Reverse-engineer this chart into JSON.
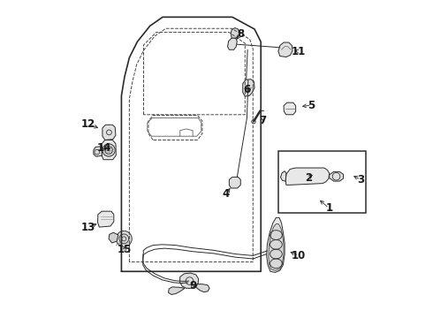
{
  "bg_color": "#ffffff",
  "line_color": "#2a2a2a",
  "label_color": "#1a1a1a",
  "lw_main": 1.2,
  "lw_thin": 0.7,
  "lw_dash": 0.7,
  "label_fontsize": 8.5,
  "figsize": [
    4.9,
    3.6
  ],
  "dpi": 100,
  "label_positions": {
    "1": [
      0.855,
      0.345,
      0.82,
      0.375
    ],
    "2": [
      0.79,
      0.44,
      0.81,
      0.455
    ],
    "3": [
      0.955,
      0.435,
      0.925,
      0.45
    ],
    "4": [
      0.53,
      0.39,
      0.548,
      0.415
    ],
    "5": [
      0.8,
      0.67,
      0.762,
      0.665
    ],
    "6": [
      0.595,
      0.72,
      0.61,
      0.72
    ],
    "7": [
      0.645,
      0.62,
      0.638,
      0.637
    ],
    "8": [
      0.575,
      0.895,
      0.558,
      0.87
    ],
    "9": [
      0.425,
      0.1,
      0.418,
      0.118
    ],
    "10": [
      0.76,
      0.195,
      0.725,
      0.21
    ],
    "11": [
      0.76,
      0.84,
      0.738,
      0.845
    ],
    "12": [
      0.095,
      0.61,
      0.135,
      0.595
    ],
    "13": [
      0.095,
      0.285,
      0.13,
      0.298
    ],
    "14": [
      0.145,
      0.535,
      0.155,
      0.52
    ],
    "15": [
      0.21,
      0.215,
      0.218,
      0.233
    ]
  }
}
